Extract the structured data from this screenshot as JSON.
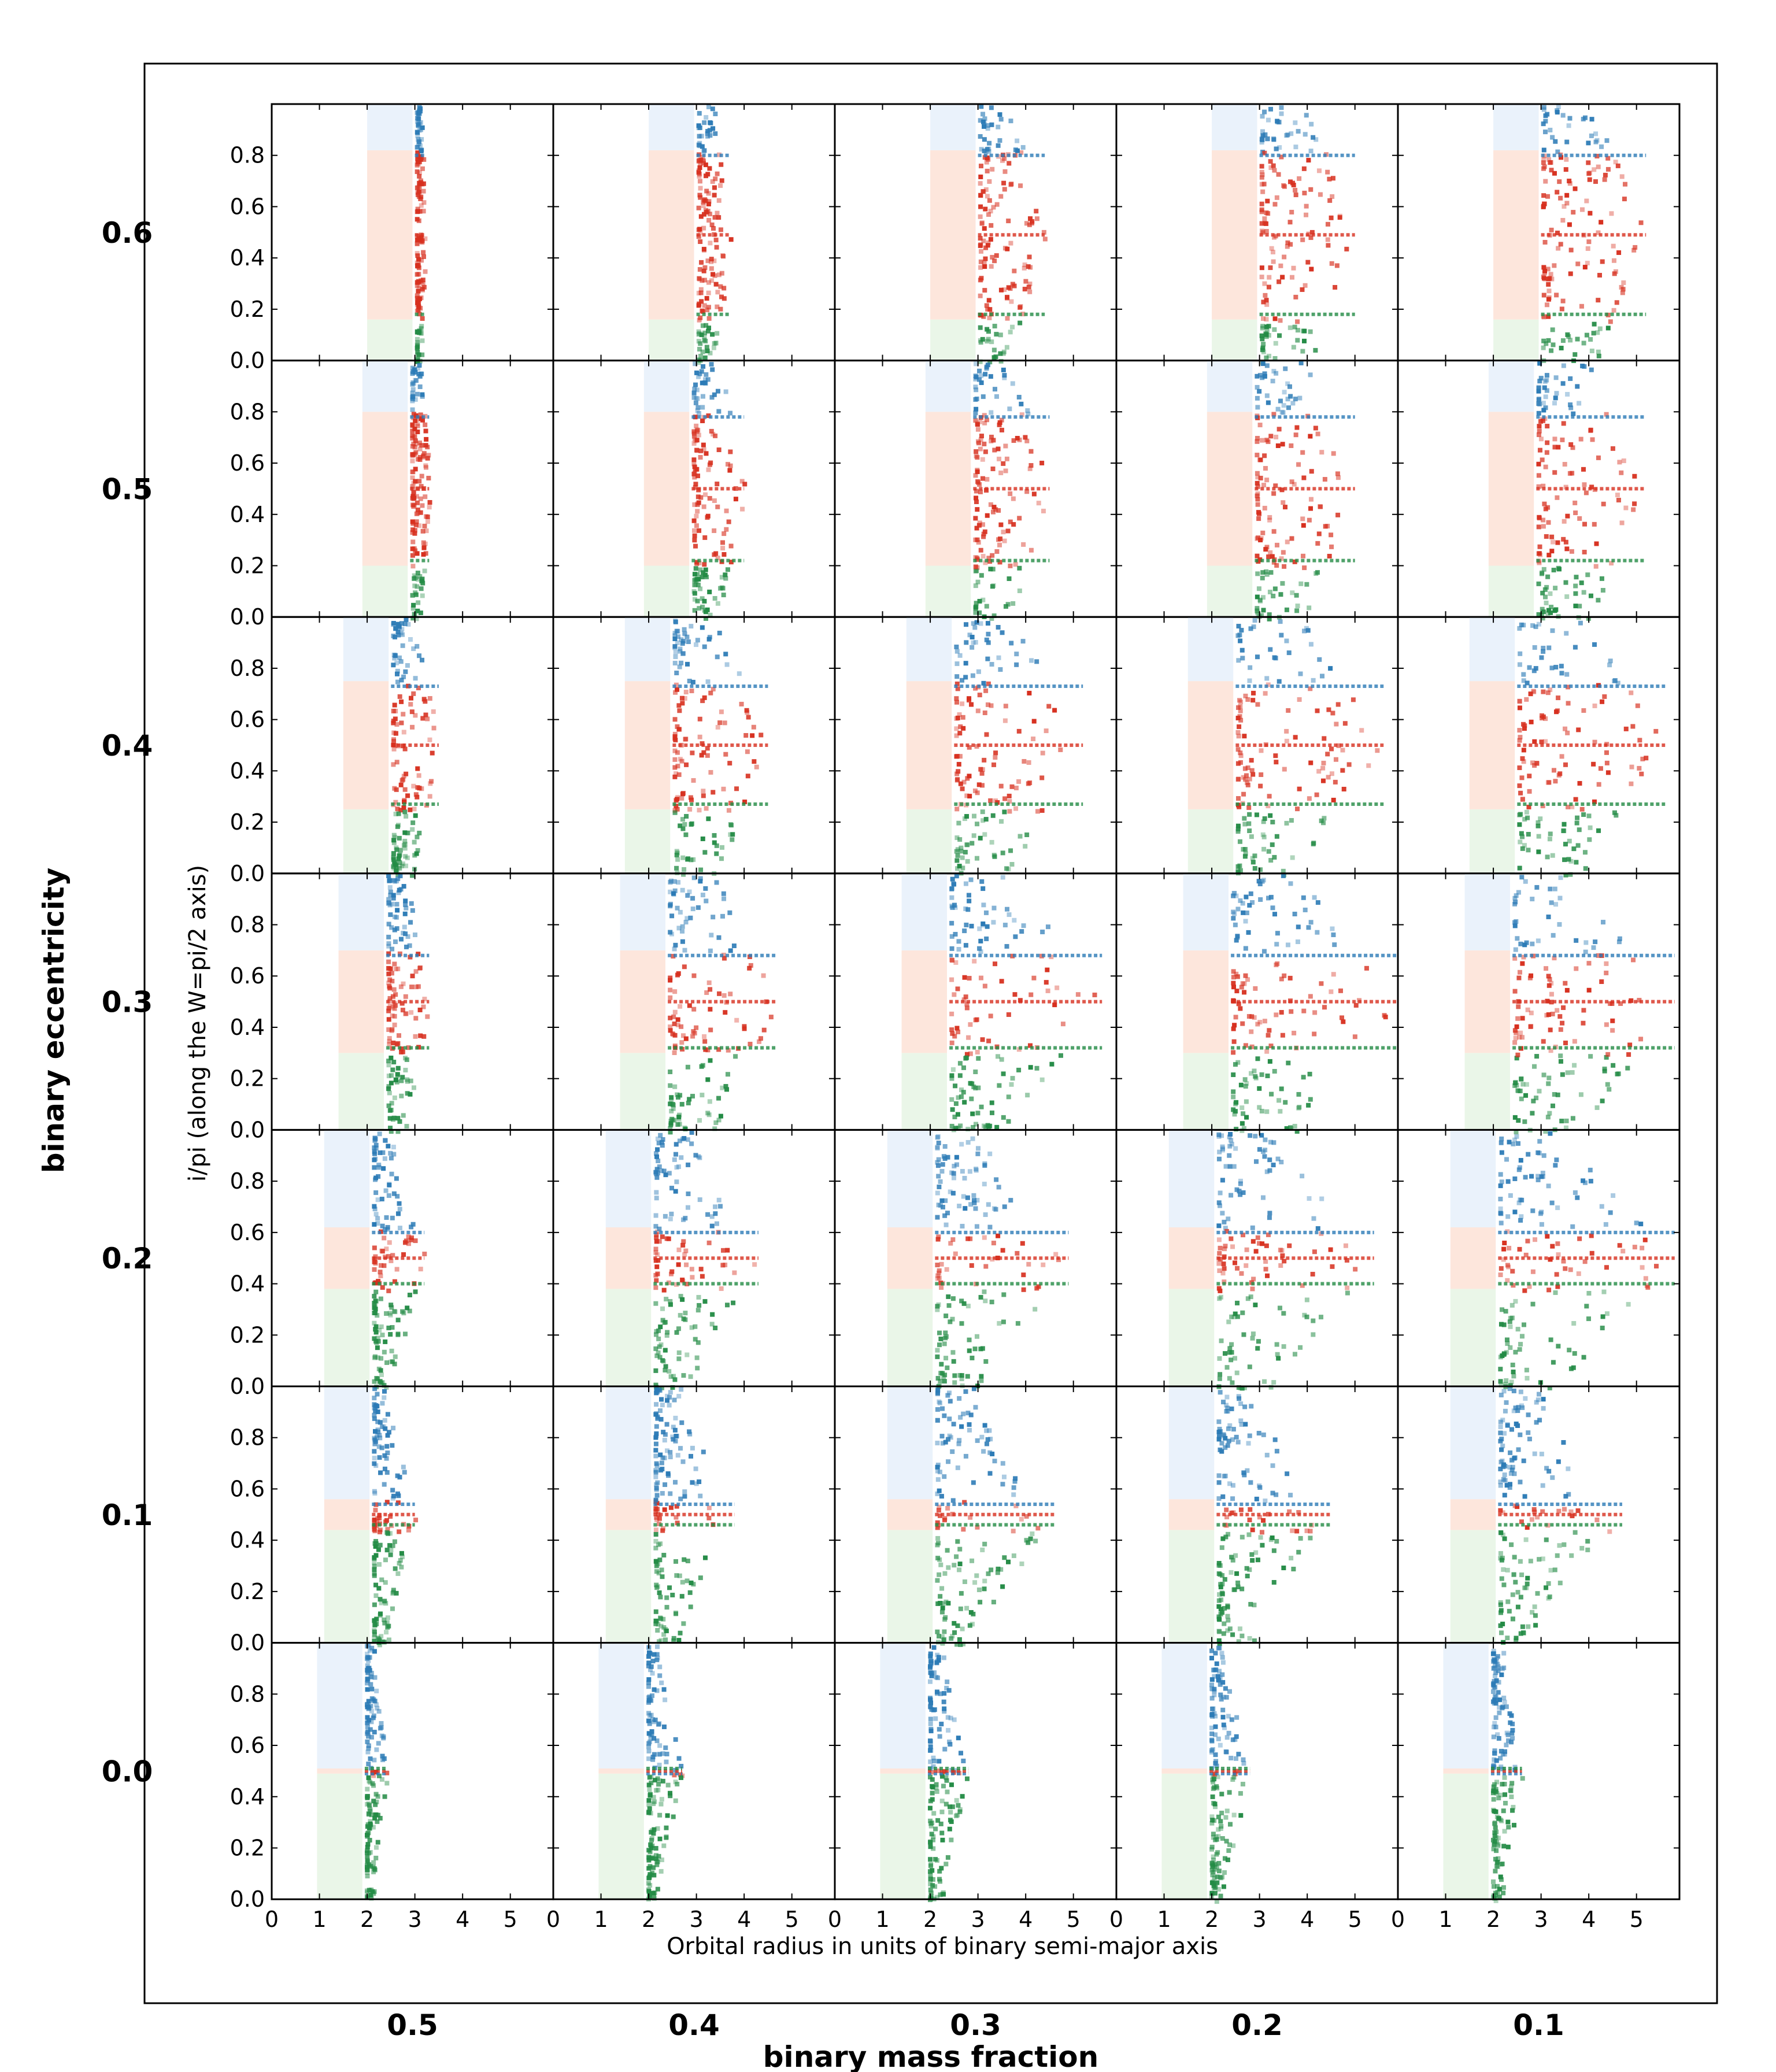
{
  "chart_data": {
    "type": "heatmap",
    "title": "",
    "xlabel": "Orbital radius in units of binary semi-major axis",
    "ylabel": "i/pi (along the W=pi/2 axis)",
    "outer_xlabel": "binary mass fraction",
    "outer_ylabel": "binary eccentricity",
    "mass_fractions": [
      "0.5",
      "0.4",
      "0.3",
      "0.2",
      "0.1"
    ],
    "eccentricities": [
      "0.6",
      "0.5",
      "0.4",
      "0.3",
      "0.2",
      "0.1",
      "0.0"
    ],
    "xlim": [
      0,
      5.9
    ],
    "ylim": [
      0,
      1
    ],
    "x_ticks": [
      "0",
      "1",
      "2",
      "3",
      "4",
      "5"
    ],
    "y_ticks": [
      "0.0",
      "0.2",
      "0.4",
      "0.6",
      "0.8"
    ],
    "colors": {
      "region_top": "#2c7bb6",
      "region_middle": "#d7301f",
      "region_bottom": "#238b45",
      "region_top_fill": "#eaf2fb",
      "region_middle_fill": "#fde6dc",
      "region_bottom_fill": "#eaf6e8",
      "frame": "#000000"
    },
    "panels_note": "rows ordered top-to-bottom by eccentricity, columns left-to-right by mass fraction; band boundaries are i/pi values; x_start is the smallest orbital radius shown",
    "rows": [
      {
        "ecc": "0.6",
        "band_low": 0.16,
        "band_high": 0.82,
        "x_start": [
          2.0,
          2.0,
          2.0,
          2.0,
          2.0
        ],
        "reach": [
          3.2,
          3.7,
          4.4,
          5.0,
          5.2
        ]
      },
      {
        "ecc": "0.5",
        "band_low": 0.2,
        "band_high": 0.8,
        "x_start": [
          1.9,
          1.9,
          1.9,
          1.9,
          1.9
        ],
        "reach": [
          3.3,
          4.0,
          4.5,
          5.0,
          5.2
        ]
      },
      {
        "ecc": "0.4",
        "band_low": 0.25,
        "band_high": 0.75,
        "x_start": [
          1.5,
          1.5,
          1.5,
          1.5,
          1.5
        ],
        "reach": [
          3.5,
          4.5,
          5.2,
          5.6,
          5.6
        ]
      },
      {
        "ecc": "0.3",
        "band_low": 0.3,
        "band_high": 0.7,
        "x_start": [
          1.4,
          1.4,
          1.4,
          1.4,
          1.4
        ],
        "reach": [
          3.3,
          4.7,
          5.6,
          5.9,
          5.8
        ]
      },
      {
        "ecc": "0.2",
        "band_low": 0.38,
        "band_high": 0.62,
        "x_start": [
          1.1,
          1.1,
          1.1,
          1.1,
          1.1
        ],
        "reach": [
          3.2,
          4.3,
          4.9,
          5.4,
          5.8
        ]
      },
      {
        "ecc": "0.1",
        "band_low": 0.44,
        "band_high": 0.56,
        "x_start": [
          1.1,
          1.1,
          1.1,
          1.1,
          1.1
        ],
        "reach": [
          3.0,
          3.8,
          4.6,
          4.5,
          4.7
        ]
      },
      {
        "ecc": "0.0",
        "band_low": 0.49,
        "band_high": 0.51,
        "x_start": [
          0.95,
          0.95,
          0.95,
          0.95,
          0.95
        ],
        "reach": [
          2.4,
          2.7,
          2.8,
          2.8,
          2.6
        ]
      }
    ]
  }
}
